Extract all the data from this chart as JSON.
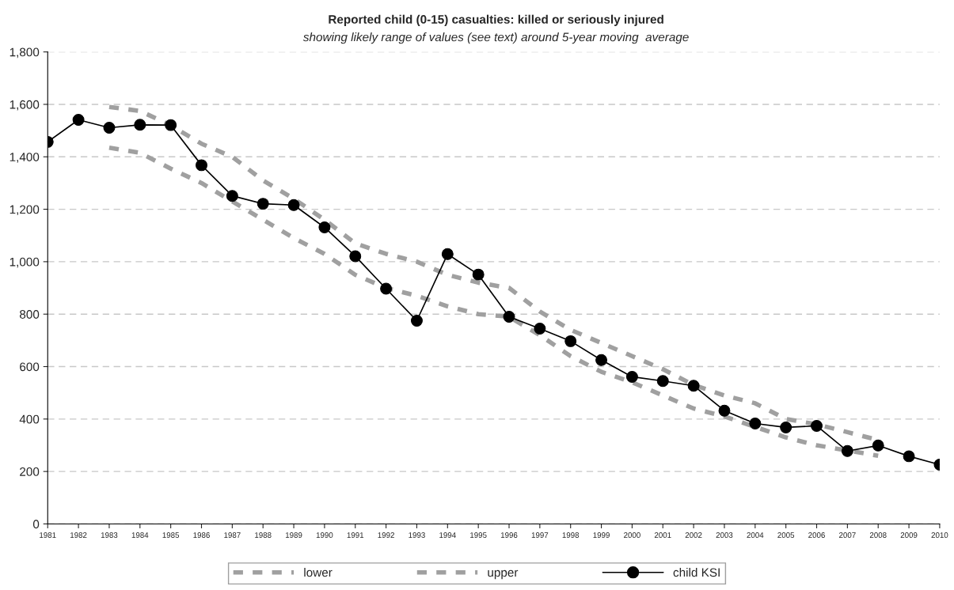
{
  "chart_data": {
    "type": "line",
    "title": "Reported child (0-15) casualties: killed or seriously injured",
    "subtitle": "showing likely range of values (see text) around 5-year moving  average",
    "categories": [
      "1981",
      "1982",
      "1983",
      "1984",
      "1985",
      "1986",
      "1987",
      "1988",
      "1989",
      "1990",
      "1991",
      "1992",
      "1993",
      "1994",
      "1995",
      "1996",
      "1997",
      "1998",
      "1999",
      "2000",
      "2001",
      "2002",
      "2003",
      "2004",
      "2005",
      "2006",
      "2007",
      "2008",
      "2009",
      "2010"
    ],
    "series": [
      {
        "name": "lower",
        "color": "#a0a0a0",
        "line_style": "dashed",
        "marker": "none",
        "values": [
          null,
          null,
          1435,
          1415,
          1355,
          1300,
          1230,
          1160,
          1090,
          1030,
          950,
          900,
          870,
          830,
          800,
          790,
          720,
          640,
          580,
          540,
          490,
          440,
          410,
          370,
          330,
          300,
          280,
          260,
          null,
          null
        ]
      },
      {
        "name": "upper",
        "color": "#a0a0a0",
        "line_style": "dashed",
        "marker": "none",
        "values": [
          null,
          null,
          1590,
          1575,
          1520,
          1450,
          1400,
          1310,
          1240,
          1160,
          1070,
          1030,
          1000,
          950,
          920,
          900,
          810,
          740,
          690,
          640,
          590,
          530,
          490,
          460,
          400,
          380,
          350,
          320,
          null,
          null
        ]
      },
      {
        "name": "child KSI",
        "color": "#000000",
        "line_style": "solid",
        "marker": "circle",
        "values": [
          1457,
          1541,
          1511,
          1522,
          1521,
          1368,
          1251,
          1221,
          1216,
          1131,
          1021,
          897,
          775,
          1029,
          951,
          790,
          745,
          697,
          625,
          561,
          545,
          527,
          432,
          383,
          368,
          374,
          278,
          299,
          258,
          226
        ]
      }
    ],
    "ylim": [
      0,
      1800
    ],
    "yticks": [
      {
        "value": 0,
        "label": "0"
      },
      {
        "value": 200,
        "label": "200"
      },
      {
        "value": 400,
        "label": "400"
      },
      {
        "value": 600,
        "label": "600"
      },
      {
        "value": 800,
        "label": "800"
      },
      {
        "value": 1000,
        "label": "1,000"
      },
      {
        "value": 1200,
        "label": "1,200"
      },
      {
        "value": 1400,
        "label": "1,400"
      },
      {
        "value": 1600,
        "label": "1,600"
      },
      {
        "value": 1800,
        "label": "1,800"
      }
    ],
    "grid": "y",
    "legend": "bottom"
  }
}
